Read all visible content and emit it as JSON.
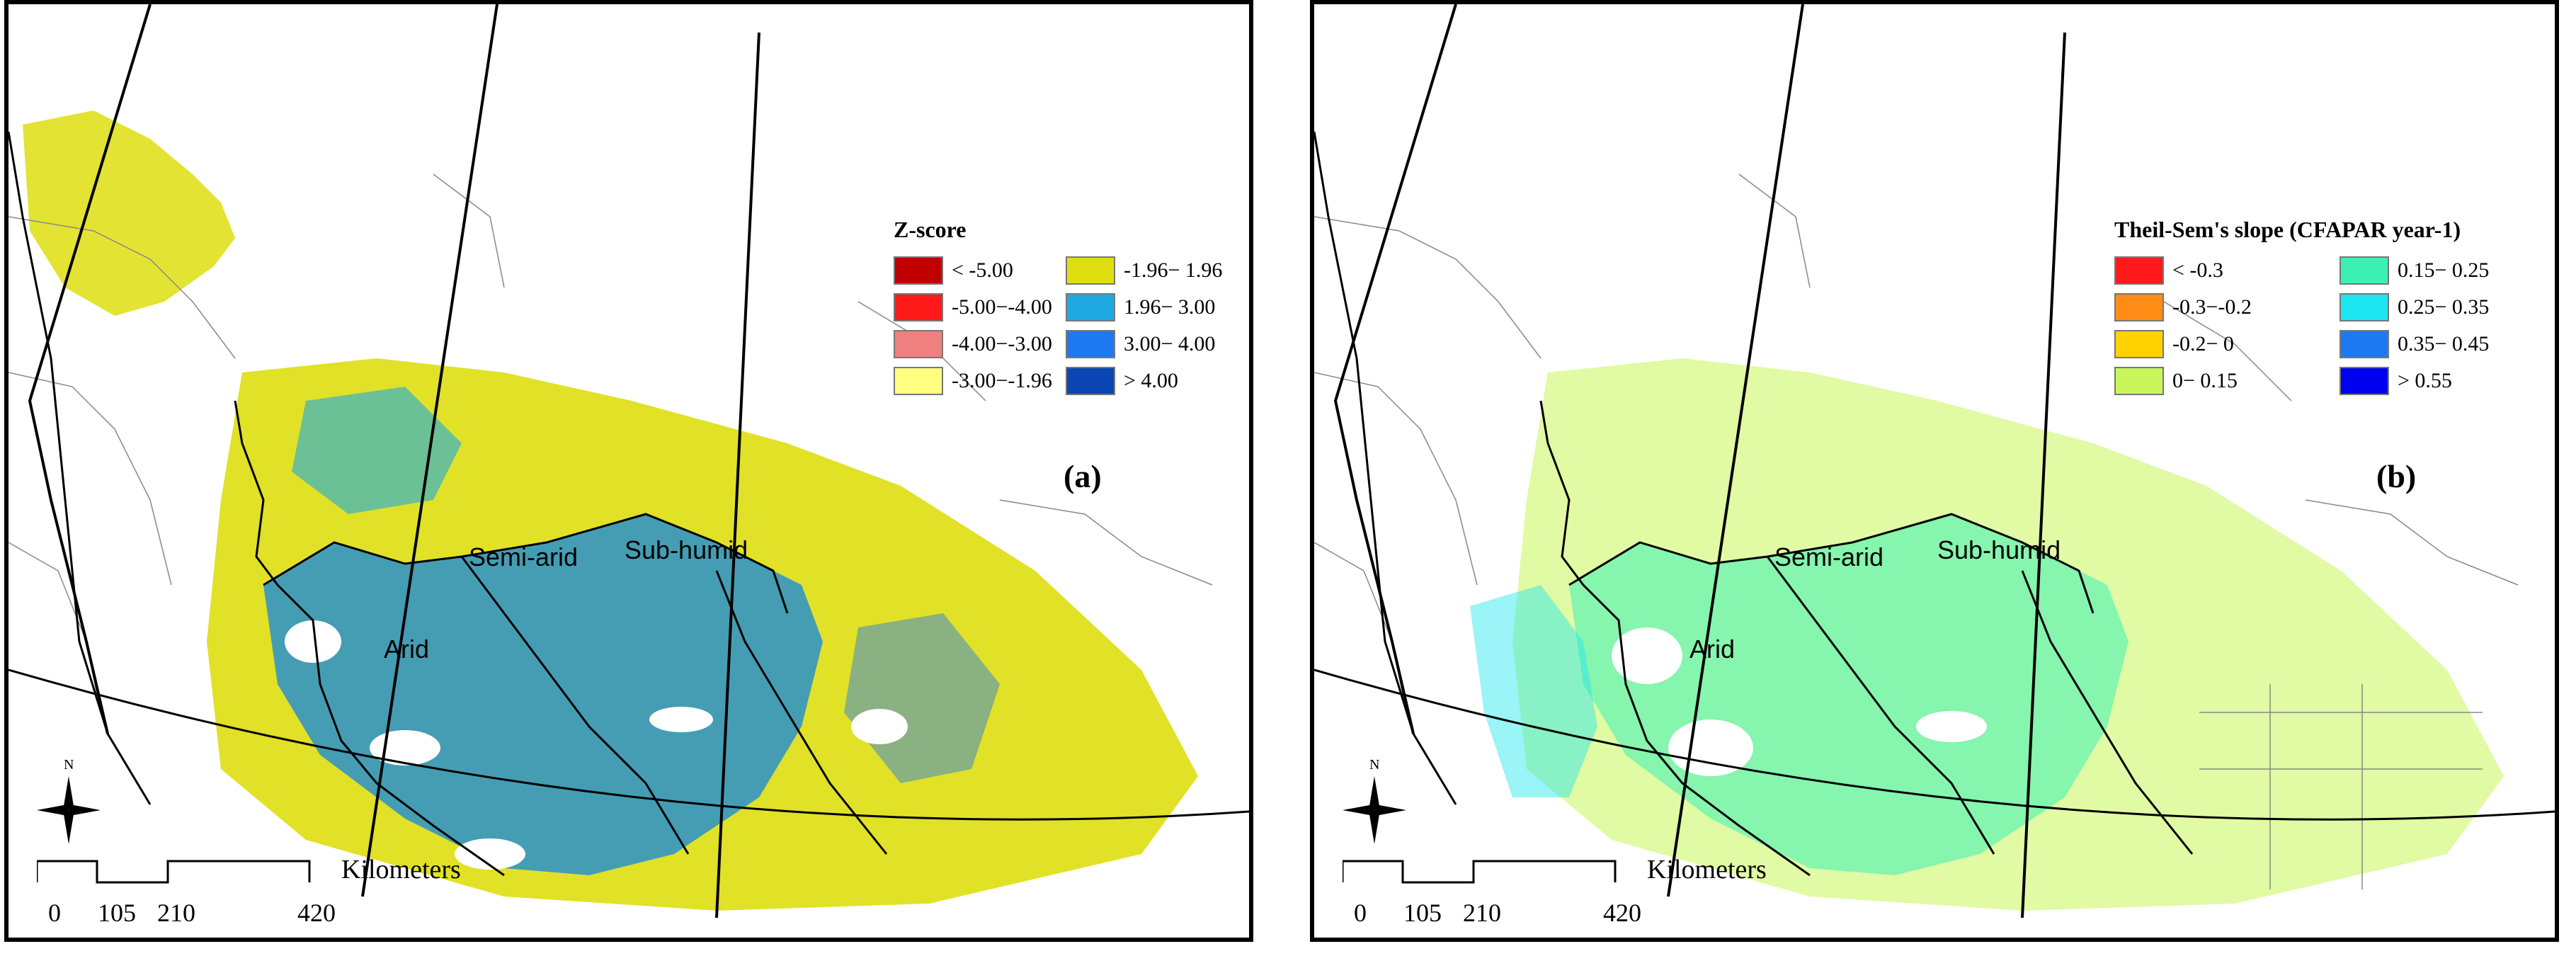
{
  "panels": [
    {
      "id": "a",
      "label": "(a)",
      "legend": {
        "title": "Z-score",
        "items": [
          {
            "label": "< -5.00",
            "color": "#c00000"
          },
          {
            "label": "-1.96− 1.96",
            "color": "#dede10"
          },
          {
            "label": "-5.00−-4.00",
            "color": "#ff1a1a"
          },
          {
            "label": "1.96− 3.00",
            "color": "#1eaae0"
          },
          {
            "label": "-4.00−-3.00",
            "color": "#f08080"
          },
          {
            "label": "3.00− 4.00",
            "color": "#1e78f0"
          },
          {
            "label": "-3.00−-1.96",
            "color": "#ffff80"
          },
          {
            "label": "> 4.00",
            "color": "#0a46b4"
          }
        ]
      },
      "regions": {
        "arid": "Arid",
        "semi_arid": "Semi-arid",
        "sub_humid": "Sub-humid"
      },
      "scale": {
        "unit": "Kilometers",
        "ticks": [
          "0",
          "105",
          "210",
          "420"
        ]
      }
    },
    {
      "id": "b",
      "label": "(b)",
      "legend": {
        "title": "Theil-Sem's slope (CFAPAR year-1)",
        "items": [
          {
            "label": "< -0.3",
            "color": "#ff1a1a"
          },
          {
            "label": "0.15− 0.25",
            "color": "#3cf0b4"
          },
          {
            "label": "-0.3−-0.2",
            "color": "#ff8c14"
          },
          {
            "label": "0.25− 0.35",
            "color": "#1ee6f0"
          },
          {
            "label": "-0.2− 0",
            "color": "#ffd200"
          },
          {
            "label": "0.35− 0.45",
            "color": "#1e78f0"
          },
          {
            "label": "0− 0.15",
            "color": "#c8f55a"
          },
          {
            "label": "> 0.55",
            "color": "#0000f0"
          }
        ]
      },
      "regions": {
        "arid": "Arid",
        "semi_arid": "Semi-arid",
        "sub_humid": "Sub-humid"
      },
      "scale": {
        "unit": "Kilometers",
        "ticks": [
          "0",
          "105",
          "210",
          "420"
        ]
      }
    }
  ],
  "icons": {
    "north_arrow": "north-arrow-icon",
    "north_letter": "N"
  }
}
